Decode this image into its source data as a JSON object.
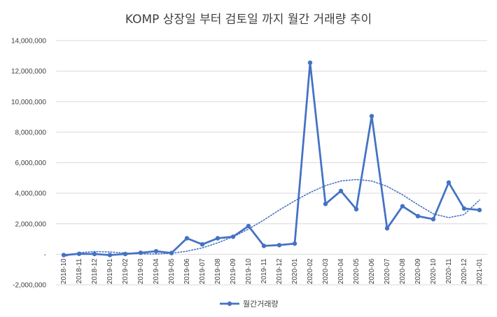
{
  "chart_data": {
    "type": "line",
    "title": "KOMP 상장일 부터 검토일 까지 월간 거래량 추이",
    "xlabel": "",
    "ylabel": "",
    "ylim": [
      -2000000,
      14000000
    ],
    "ytick_values": [
      -2000000,
      0,
      2000000,
      4000000,
      6000000,
      8000000,
      10000000,
      12000000,
      14000000
    ],
    "ytick_labels": [
      "-2,000,000",
      "-",
      "2,000,000",
      "4,000,000",
      "6,000,000",
      "8,000,000",
      "10,000,000",
      "12,000,000",
      "14,000,000"
    ],
    "grid": true,
    "legend_position": "bottom",
    "categories": [
      "2018-10",
      "2018-11",
      "2018-12",
      "2019-01",
      "2019-02",
      "2019-03",
      "2019-04",
      "2019-05",
      "2019-06",
      "2019-07",
      "2019-08",
      "2019-09",
      "2019-10",
      "2019-11",
      "2019-12",
      "2020-01",
      "2020-02",
      "2020-03",
      "2020-04",
      "2020-05",
      "2020-06",
      "2020-07",
      "2020-08",
      "2020-09",
      "2020-10",
      "2020-11",
      "2020-12",
      "2021-01"
    ],
    "series": [
      {
        "name": "월간거래량",
        "color": "#4472c4",
        "values": [
          -50000,
          30000,
          20000,
          -50000,
          20000,
          100000,
          200000,
          80000,
          1050000,
          650000,
          1050000,
          1150000,
          1850000,
          550000,
          600000,
          700000,
          12550000,
          3300000,
          4150000,
          2950000,
          9050000,
          1700000,
          3150000,
          2500000,
          2300000,
          4700000,
          3000000,
          2900000
        ]
      }
    ],
    "trendline": {
      "type": "polynomial",
      "style": "dotted",
      "color": "#4472c4",
      "values": [
        -150000,
        100000,
        180000,
        150000,
        80000,
        30000,
        20000,
        70000,
        200000,
        420000,
        750000,
        1150000,
        1650000,
        2250000,
        2900000,
        3500000,
        4050000,
        4500000,
        4800000,
        4900000,
        4800000,
        4450000,
        3900000,
        3250000,
        2650000,
        2400000,
        2600000,
        3550000
      ]
    }
  }
}
